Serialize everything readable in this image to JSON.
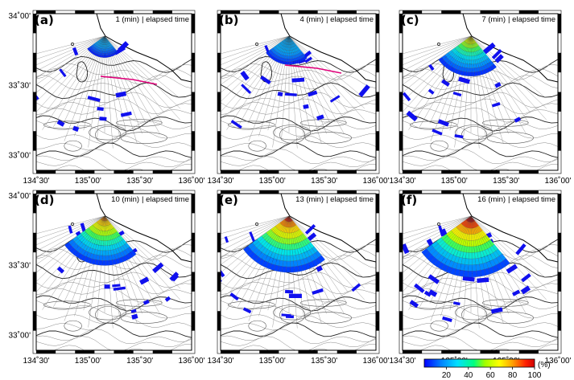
{
  "panels": [
    {
      "label": "(a)",
      "minutes": "1",
      "time_unit": "(min)",
      "time_label": "elapsed time",
      "coverage": 0.15,
      "red_line": true
    },
    {
      "label": "(b)",
      "minutes": "4",
      "time_unit": "(min)",
      "time_label": "elapsed time",
      "coverage": 0.3,
      "red_line": true
    },
    {
      "label": "(c)",
      "minutes": "7",
      "time_unit": "(min)",
      "time_label": "elapsed time",
      "coverage": 0.55,
      "red_line": false
    },
    {
      "label": "(d)",
      "minutes": "10",
      "time_unit": "(min)",
      "time_label": "elapsed time",
      "coverage": 0.75,
      "red_line": false
    },
    {
      "label": "(e)",
      "minutes": "13",
      "time_unit": "(min)",
      "time_label": "elapsed time",
      "coverage": 0.9,
      "red_line": false
    },
    {
      "label": "(f)",
      "minutes": "16",
      "time_unit": "(min)",
      "time_label": "elapsed time",
      "coverage": 1.0,
      "red_line": false
    }
  ],
  "axes": {
    "x_ticks": [
      "134˚30'",
      "135˚00'",
      "135˚30'",
      "136˚00'"
    ],
    "y_ticks": [
      "34˚00'",
      "33˚30'",
      "33˚00'"
    ]
  },
  "colorbar": {
    "ticks": [
      "20",
      "40",
      "60",
      "80",
      "100"
    ],
    "unit": "(%)",
    "colors": [
      "#0000ff",
      "#0080ff",
      "#00e0ff",
      "#00ff80",
      "#80ff00",
      "#ffff00",
      "#ffa000",
      "#ff3000",
      "#d00000"
    ]
  }
}
